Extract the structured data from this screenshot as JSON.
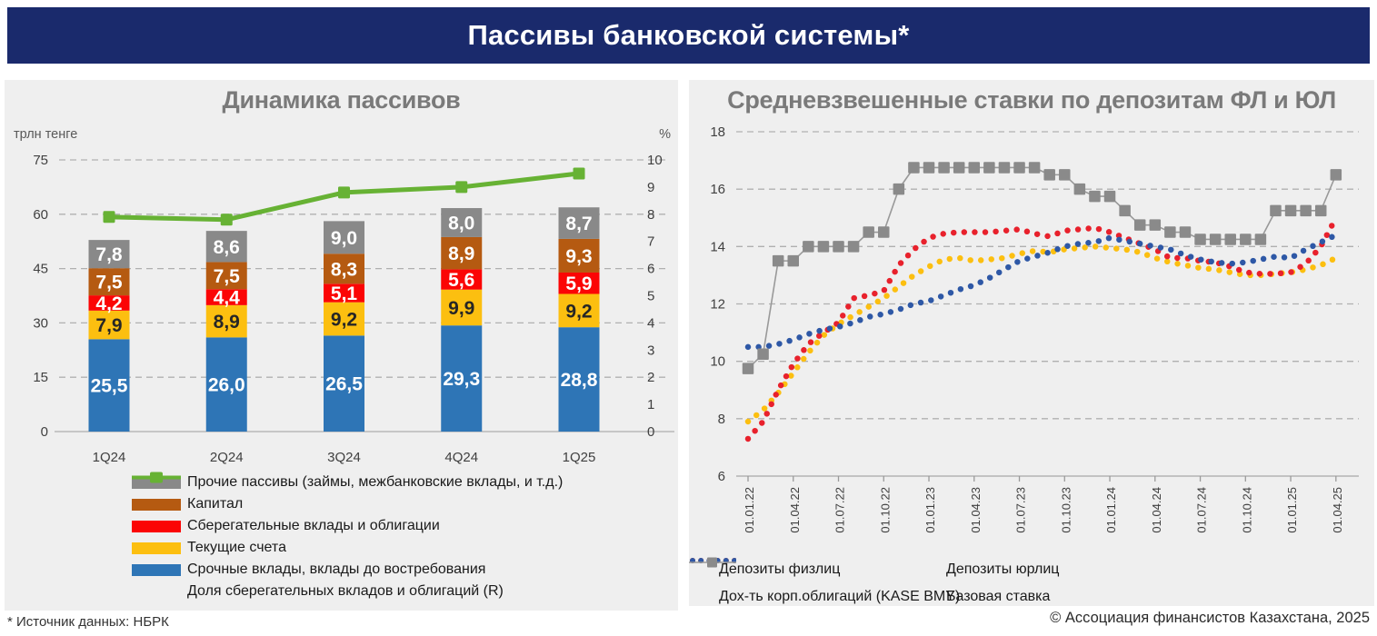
{
  "header": {
    "title": "Пассивы банковской системы*",
    "bg_color": "#1a2a6c"
  },
  "footer": {
    "source_note": "* Источник данных: НБРК",
    "copyright": "© Ассоциация финансистов Казахстана, 2025"
  },
  "panel_bg": "#efefef",
  "chart_data": [
    {
      "type": "bar",
      "stacked": true,
      "title": "Динамика пассивов",
      "unit_left": "трлн тенге",
      "unit_right": "%",
      "categories": [
        "1Q24",
        "2Q24",
        "3Q24",
        "4Q24",
        "1Q25"
      ],
      "ylim_left": [
        0,
        75
      ],
      "yticks_left": [
        0,
        15,
        30,
        45,
        60,
        75
      ],
      "ylim_right": [
        0,
        10
      ],
      "yticks_right": [
        0,
        1,
        2,
        3,
        4,
        5,
        6,
        7,
        8,
        9,
        10
      ],
      "grid": "dashed-horizontal",
      "series": [
        {
          "name": "Срочные вклады, вклады до востребования",
          "color": "#2e75b6",
          "label_color": "#ffffff",
          "values": [
            25.5,
            26.0,
            26.5,
            29.3,
            28.8
          ]
        },
        {
          "name": "Текущие счета",
          "color": "#fcbf10",
          "label_color": "#262626",
          "values": [
            7.9,
            8.9,
            9.2,
            9.9,
            9.2
          ]
        },
        {
          "name": "Сберегательные вклады и облигации",
          "color": "#fb0505",
          "label_color": "#ffffff",
          "values": [
            4.2,
            4.4,
            5.1,
            5.6,
            5.9
          ]
        },
        {
          "name": "Капитал",
          "color": "#b55a11",
          "label_color": "#ffffff",
          "values": [
            7.5,
            7.5,
            8.3,
            8.9,
            9.3
          ]
        },
        {
          "name": "Прочие пассивы (займы, межбанковские вклады, и т.д.)",
          "color": "#898989",
          "label_color": "#ffffff",
          "values": [
            7.8,
            8.6,
            9.0,
            8.0,
            8.7
          ]
        }
      ],
      "line_series": {
        "name": "Доля сберегательных вкладов и облигаций (R)",
        "color": "#67b234",
        "axis": "right",
        "values": [
          7.9,
          7.8,
          8.8,
          9.0,
          9.5
        ]
      },
      "legend_series_order": [
        4,
        3,
        2,
        1,
        0
      ]
    },
    {
      "type": "line",
      "title": "Средневзвешенные ставки по депозитам ФЛ и ЮЛ",
      "x_points": 40,
      "x_tick_every_months": 3,
      "x_tick_labels": [
        "01.01.22",
        "01.04.22",
        "01.07.22",
        "01.10.22",
        "01.01.23",
        "01.04.23",
        "01.07.23",
        "01.10.23",
        "01.01.24",
        "01.04.24",
        "01.07.24",
        "01.10.24",
        "01.01.25",
        "01.04.25"
      ],
      "ylim": [
        6,
        18
      ],
      "yticks": [
        6,
        8,
        10,
        12,
        14,
        16,
        18
      ],
      "grid": "dashed-horizontal",
      "legend_rows": [
        [
          "Депозиты физлиц",
          "Депозиты юрлиц"
        ],
        [
          "Дох-ть корп.облигаций (KASE BMY)",
          "Базовая ставка"
        ]
      ],
      "series": [
        {
          "name": "Депозиты физлиц",
          "style": "dotted",
          "color": "#fcbf10",
          "values": [
            7.9,
            8.3,
            8.9,
            9.6,
            10.3,
            10.9,
            11.3,
            11.6,
            11.9,
            12.2,
            12.6,
            13.0,
            13.3,
            13.55,
            13.6,
            13.5,
            13.55,
            13.6,
            13.75,
            13.85,
            13.8,
            13.9,
            13.95,
            14.0,
            13.95,
            13.9,
            13.8,
            13.6,
            13.45,
            13.35,
            13.25,
            13.2,
            13.1,
            13.0,
            13.0,
            13.05,
            13.1,
            13.2,
            13.35,
            13.6
          ]
        },
        {
          "name": "Депозиты юрлиц",
          "style": "dotted",
          "color": "#e8212c",
          "values": [
            7.3,
            7.9,
            9.0,
            9.9,
            10.6,
            11.0,
            11.35,
            12.2,
            12.3,
            12.45,
            13.35,
            13.9,
            14.3,
            14.45,
            14.5,
            14.5,
            14.5,
            14.55,
            14.6,
            14.45,
            14.35,
            14.55,
            14.6,
            14.65,
            14.5,
            14.3,
            14.1,
            13.9,
            13.6,
            13.6,
            13.5,
            13.45,
            13.3,
            13.1,
            13.05,
            13.05,
            13.1,
            13.4,
            14.0,
            15.0
          ]
        },
        {
          "name": "Дох-ть корп.облигаций (KASE BMY)",
          "style": "dotted",
          "color": "#2e58a6",
          "values": [
            10.5,
            10.5,
            10.6,
            10.75,
            10.95,
            11.1,
            11.2,
            11.35,
            11.55,
            11.65,
            11.8,
            12.0,
            12.1,
            12.3,
            12.5,
            12.65,
            12.9,
            13.2,
            13.5,
            13.65,
            13.8,
            14.0,
            14.1,
            14.15,
            14.3,
            14.2,
            14.1,
            14.0,
            13.9,
            13.7,
            13.55,
            13.45,
            13.4,
            13.45,
            13.55,
            13.65,
            13.6,
            13.9,
            14.15,
            14.4
          ]
        },
        {
          "name": "Базовая ставка",
          "style": "line-square",
          "color": "#8a8a8a",
          "values": [
            9.75,
            10.25,
            13.5,
            13.5,
            14,
            14,
            14,
            14,
            14.5,
            14.5,
            16,
            16.75,
            16.75,
            16.75,
            16.75,
            16.75,
            16.75,
            16.75,
            16.75,
            16.75,
            16.5,
            16.5,
            16,
            15.75,
            15.75,
            15.25,
            14.75,
            14.75,
            14.5,
            14.5,
            14.25,
            14.25,
            14.25,
            14.25,
            14.25,
            15.25,
            15.25,
            15.25,
            15.25,
            16.5
          ]
        }
      ]
    }
  ]
}
